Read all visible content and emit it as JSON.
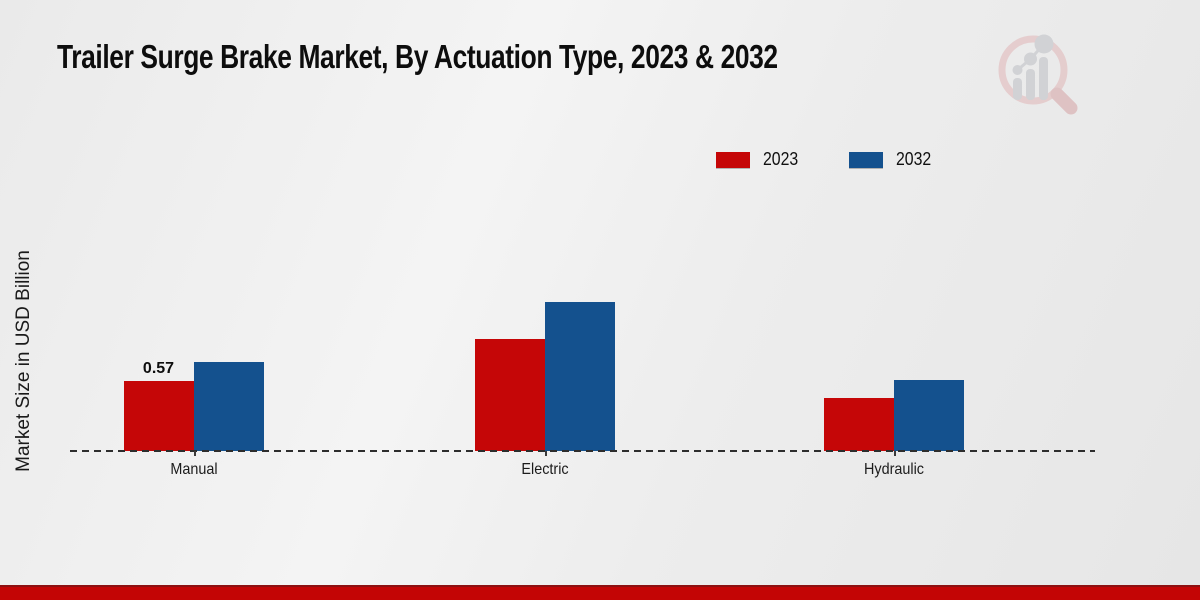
{
  "page": {
    "title": "Trailer Surge Brake Market, By Actuation Type, 2023 & 2032",
    "y_axis_label": "Market Size in USD Billion"
  },
  "icons": {
    "watermark": "magnifier-bar-chart-logo-icon"
  },
  "legend": [
    {
      "label": "2023",
      "color": "#c50607"
    },
    {
      "label": "2032",
      "color": "#14518e"
    }
  ],
  "chart_data": {
    "type": "bar",
    "title": "Trailer Surge Brake Market, By Actuation Type, 2023 & 2032",
    "categories": [
      "Manual",
      "Electric",
      "Hydraulic"
    ],
    "series": [
      {
        "name": "2023",
        "color": "#c50607",
        "values": [
          0.57,
          0.91,
          0.43
        ]
      },
      {
        "name": "2032",
        "color": "#14518e",
        "values": [
          0.72,
          1.21,
          0.58
        ]
      }
    ],
    "bar_labels": [
      {
        "category": "Manual",
        "series": "2023",
        "text": "0.57"
      }
    ],
    "xlabel": "",
    "ylabel": "Market Size in USD Billion",
    "ylim": [
      0,
      1.4
    ],
    "grid": false,
    "axis_line_style": "dashed",
    "legend_position": "top-right"
  },
  "colors": {
    "accent_red": "#c50607",
    "accent_blue": "#14518e",
    "footer_red": "#c30505",
    "footer_edge": "#8d1112",
    "watermark_pink": "#e4c8c9",
    "watermark_gray": "#cdced2"
  }
}
